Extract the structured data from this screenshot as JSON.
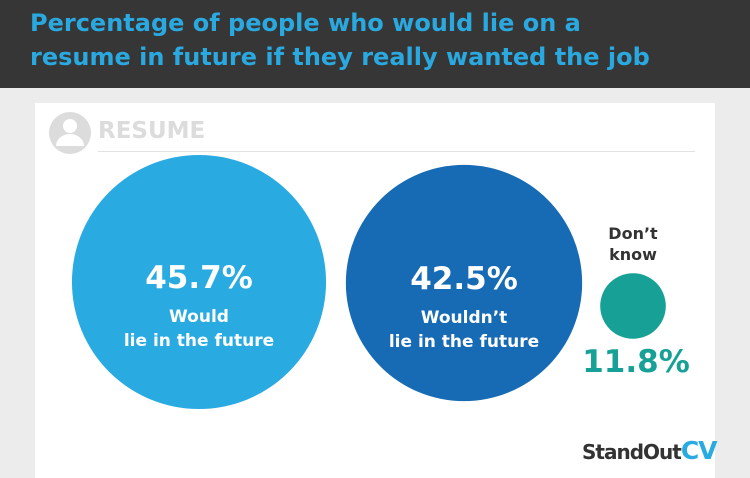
{
  "chart_data": {
    "type": "bubble",
    "title": "Percentage of people who would lie on a resume in future if they really wanted the job",
    "header_label": "RESUME",
    "categories": [
      "Would\nlie in the future",
      "Wouldn’t\nlie in the future",
      "Don’t\nknow"
    ],
    "values": [
      45.7,
      42.5,
      11.8
    ],
    "value_labels": [
      "45.7%",
      "42.5%",
      "11.8%"
    ],
    "colors": [
      "#29abe2",
      "#176bb4",
      "#17a196"
    ],
    "brand": {
      "name": "StandOut",
      "suffix": "CV"
    }
  }
}
